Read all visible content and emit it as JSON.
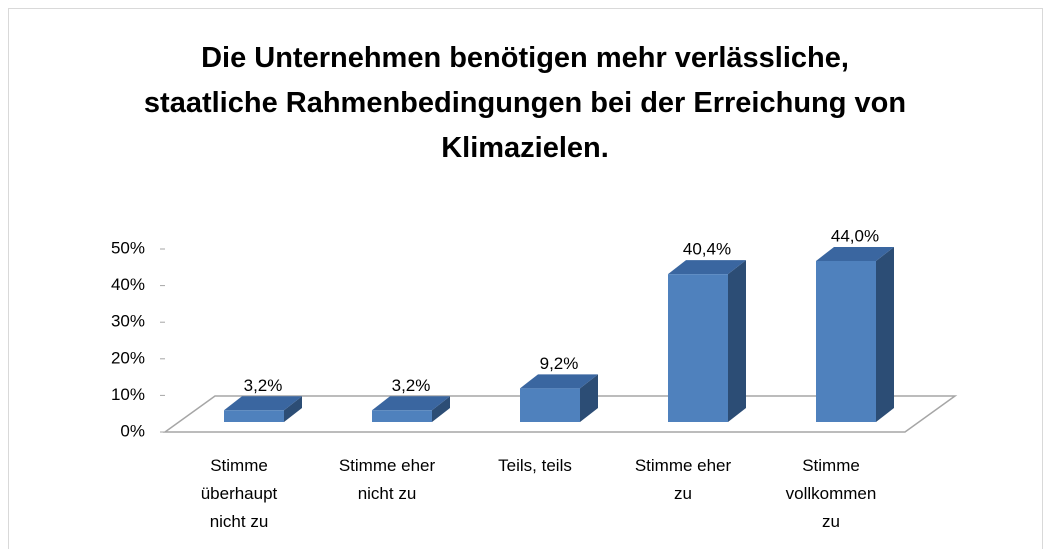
{
  "chart_data": {
    "type": "bar3d",
    "title": "Die Unternehmen benötigen mehr verlässliche, staatliche Rahmenbedingungen bei der Erreichung von Klimazielen.",
    "categories": [
      "Stimme überhaupt nicht zu",
      "Stimme eher nicht zu",
      "Teils, teils",
      "Stimme eher zu",
      "Stimme vollkommen zu"
    ],
    "values": [
      3.2,
      3.2,
      9.2,
      40.4,
      44.0
    ],
    "value_labels": [
      "3,2%",
      "3,2%",
      "9,2%",
      "40,4%",
      "44,0%"
    ],
    "color": "#4f81bd",
    "ylim": [
      0,
      50
    ],
    "yticks": [
      {
        "value": 0,
        "label": "0%"
      },
      {
        "value": 10,
        "label": "10%"
      },
      {
        "value": 20,
        "label": "20%"
      },
      {
        "value": 30,
        "label": "30%"
      },
      {
        "value": 40,
        "label": "40%"
      },
      {
        "value": 50,
        "label": "50%"
      }
    ]
  }
}
